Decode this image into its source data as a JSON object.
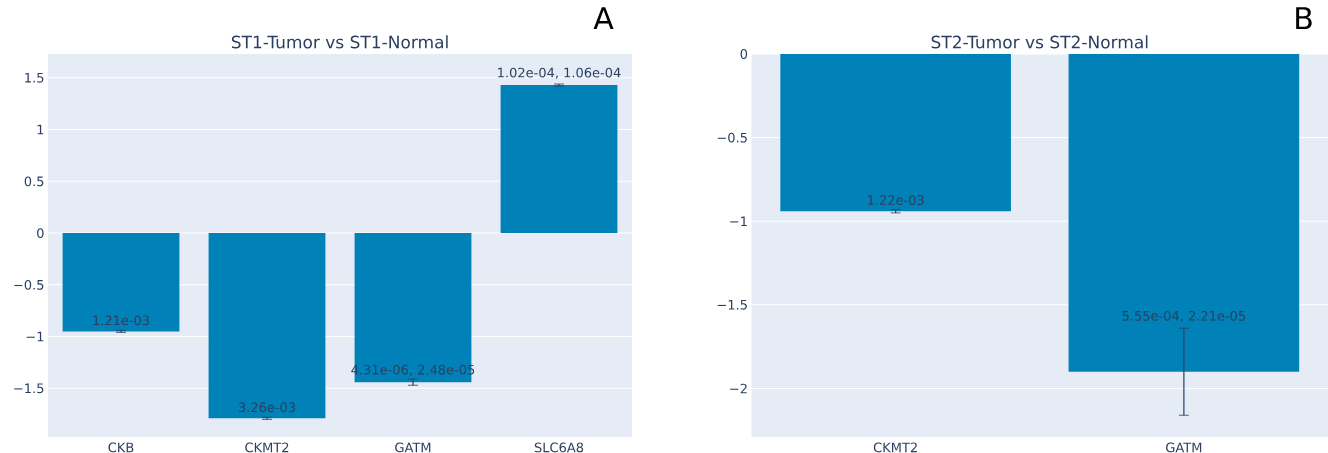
{
  "chart_data": [
    {
      "type": "bar",
      "title": "ST1-Tumor vs ST1-Normal",
      "categories": [
        "CKB",
        "CKMT2",
        "GATM",
        "SLC6A8"
      ],
      "values": [
        -0.95,
        -1.79,
        -1.44,
        1.43
      ],
      "errors": [
        0.01,
        0.01,
        0.03,
        0.01
      ],
      "color": "#0082b8",
      "ylim": [
        -1.97,
        1.73
      ],
      "yticks": [
        {
          "value": -1.5,
          "label": "−1.5"
        },
        {
          "value": -1,
          "label": "−1"
        },
        {
          "value": -0.5,
          "label": "−0.5"
        },
        0,
        0.5,
        1,
        1.5
      ],
      "grid": "y",
      "annotations": [
        "A",
        {
          "text": "1.21e-03",
          "x": "CKB",
          "y": -0.95
        },
        {
          "text": "3.26e-03",
          "x": "CKMT2",
          "y": -1.79
        },
        {
          "text": "4.31e-06, 2.48e-05",
          "x": "GATM",
          "y": -1.44
        },
        {
          "text": "1.02e-04, 1.06e-04",
          "x": "SLC6A8",
          "y": 1.43
        }
      ]
    },
    {
      "type": "bar",
      "title": "ST2-Tumor vs ST2-Normal",
      "categories": [
        "CKMT2",
        "GATM"
      ],
      "values": [
        -0.94,
        -1.9
      ],
      "errors": [
        0.01,
        0.26
      ],
      "color": "#0082b8",
      "ylim": [
        -2.29,
        0
      ],
      "yticks": [
        {
          "value": -2,
          "label": "−2"
        },
        {
          "value": -1.5,
          "label": "−1.5"
        },
        {
          "value": -1,
          "label": "−1"
        },
        {
          "value": -0.5,
          "label": "−0.5"
        },
        0
      ],
      "grid": "y",
      "annotations": [
        "B",
        {
          "text": "1.22e-03",
          "x": "CKMT2",
          "y": -0.94
        },
        {
          "text": "5.55e-04, 2.21e-05",
          "x": "GATM",
          "y": -1.64
        }
      ]
    }
  ]
}
